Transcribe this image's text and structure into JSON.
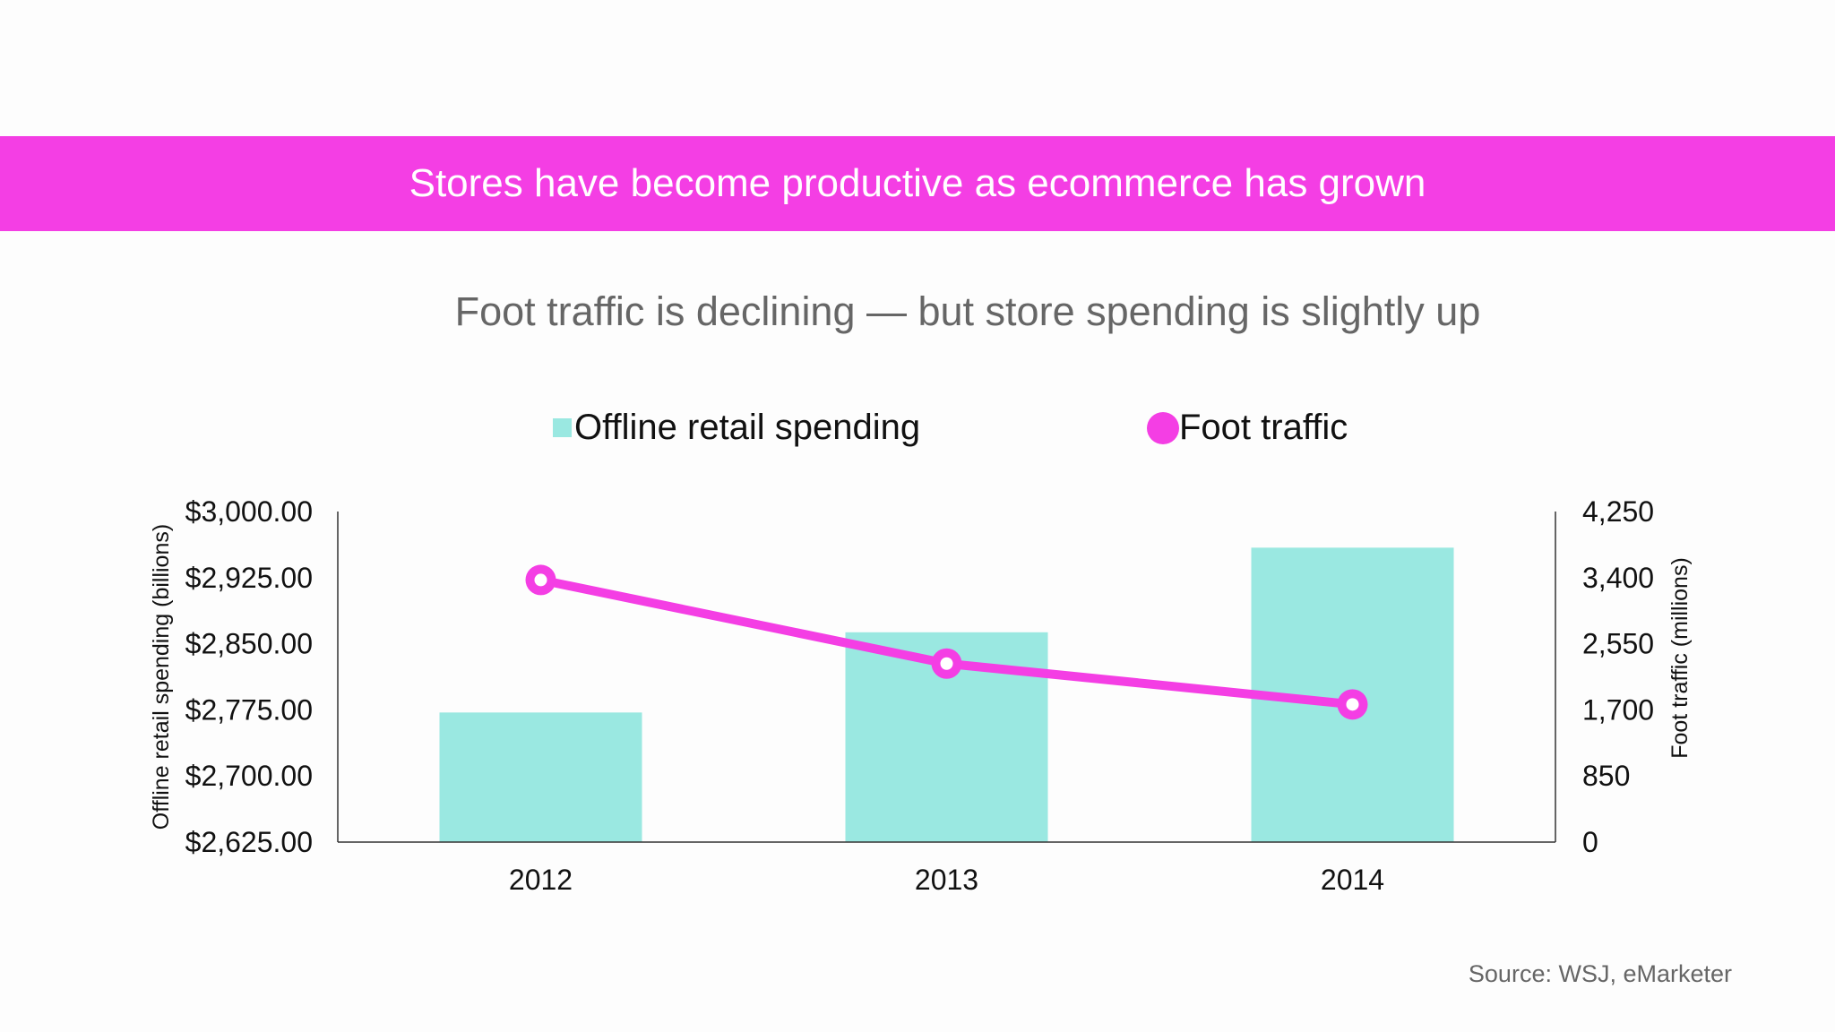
{
  "banner": {
    "title": "Stores have become productive as ecommerce has grown"
  },
  "subtitle": "Foot traffic is declining — but store spending is slightly up",
  "source": "Source: WSJ, eMarketer",
  "colors": {
    "accent": "#f43ee4",
    "bar": "#9ae8e1",
    "axis": "#333333"
  },
  "chart_data": {
    "type": "bar",
    "categories": [
      "2012",
      "2013",
      "2014"
    ],
    "series": [
      {
        "name": "Offline retail spending",
        "type": "bar",
        "axis": "left",
        "values": [
          2772,
          2863,
          2959
        ],
        "color": "#9ae8e1"
      },
      {
        "name": "Foot traffic",
        "type": "line",
        "axis": "right",
        "values": [
          3370,
          2295,
          1770
        ],
        "color": "#f43ee4"
      }
    ],
    "y_left": {
      "label": "Offline retail spending (billions)",
      "range": [
        2625,
        3000
      ],
      "ticks": [
        2625,
        2700,
        2775,
        2850,
        2925,
        3000
      ],
      "tick_labels": [
        "$2,625.00",
        "$2,700.00",
        "$2,775.00",
        "$2,850.00",
        "$2,925.00",
        "$3,000.00"
      ]
    },
    "y_right": {
      "label": "Foot traffic (millions)",
      "range": [
        0,
        4250
      ],
      "ticks": [
        0,
        850,
        1700,
        2550,
        3400,
        4250
      ],
      "tick_labels": [
        "0",
        "850",
        "1,700",
        "2,550",
        "3,400",
        "4,250"
      ]
    },
    "legend_position": "top",
    "grid": false
  }
}
